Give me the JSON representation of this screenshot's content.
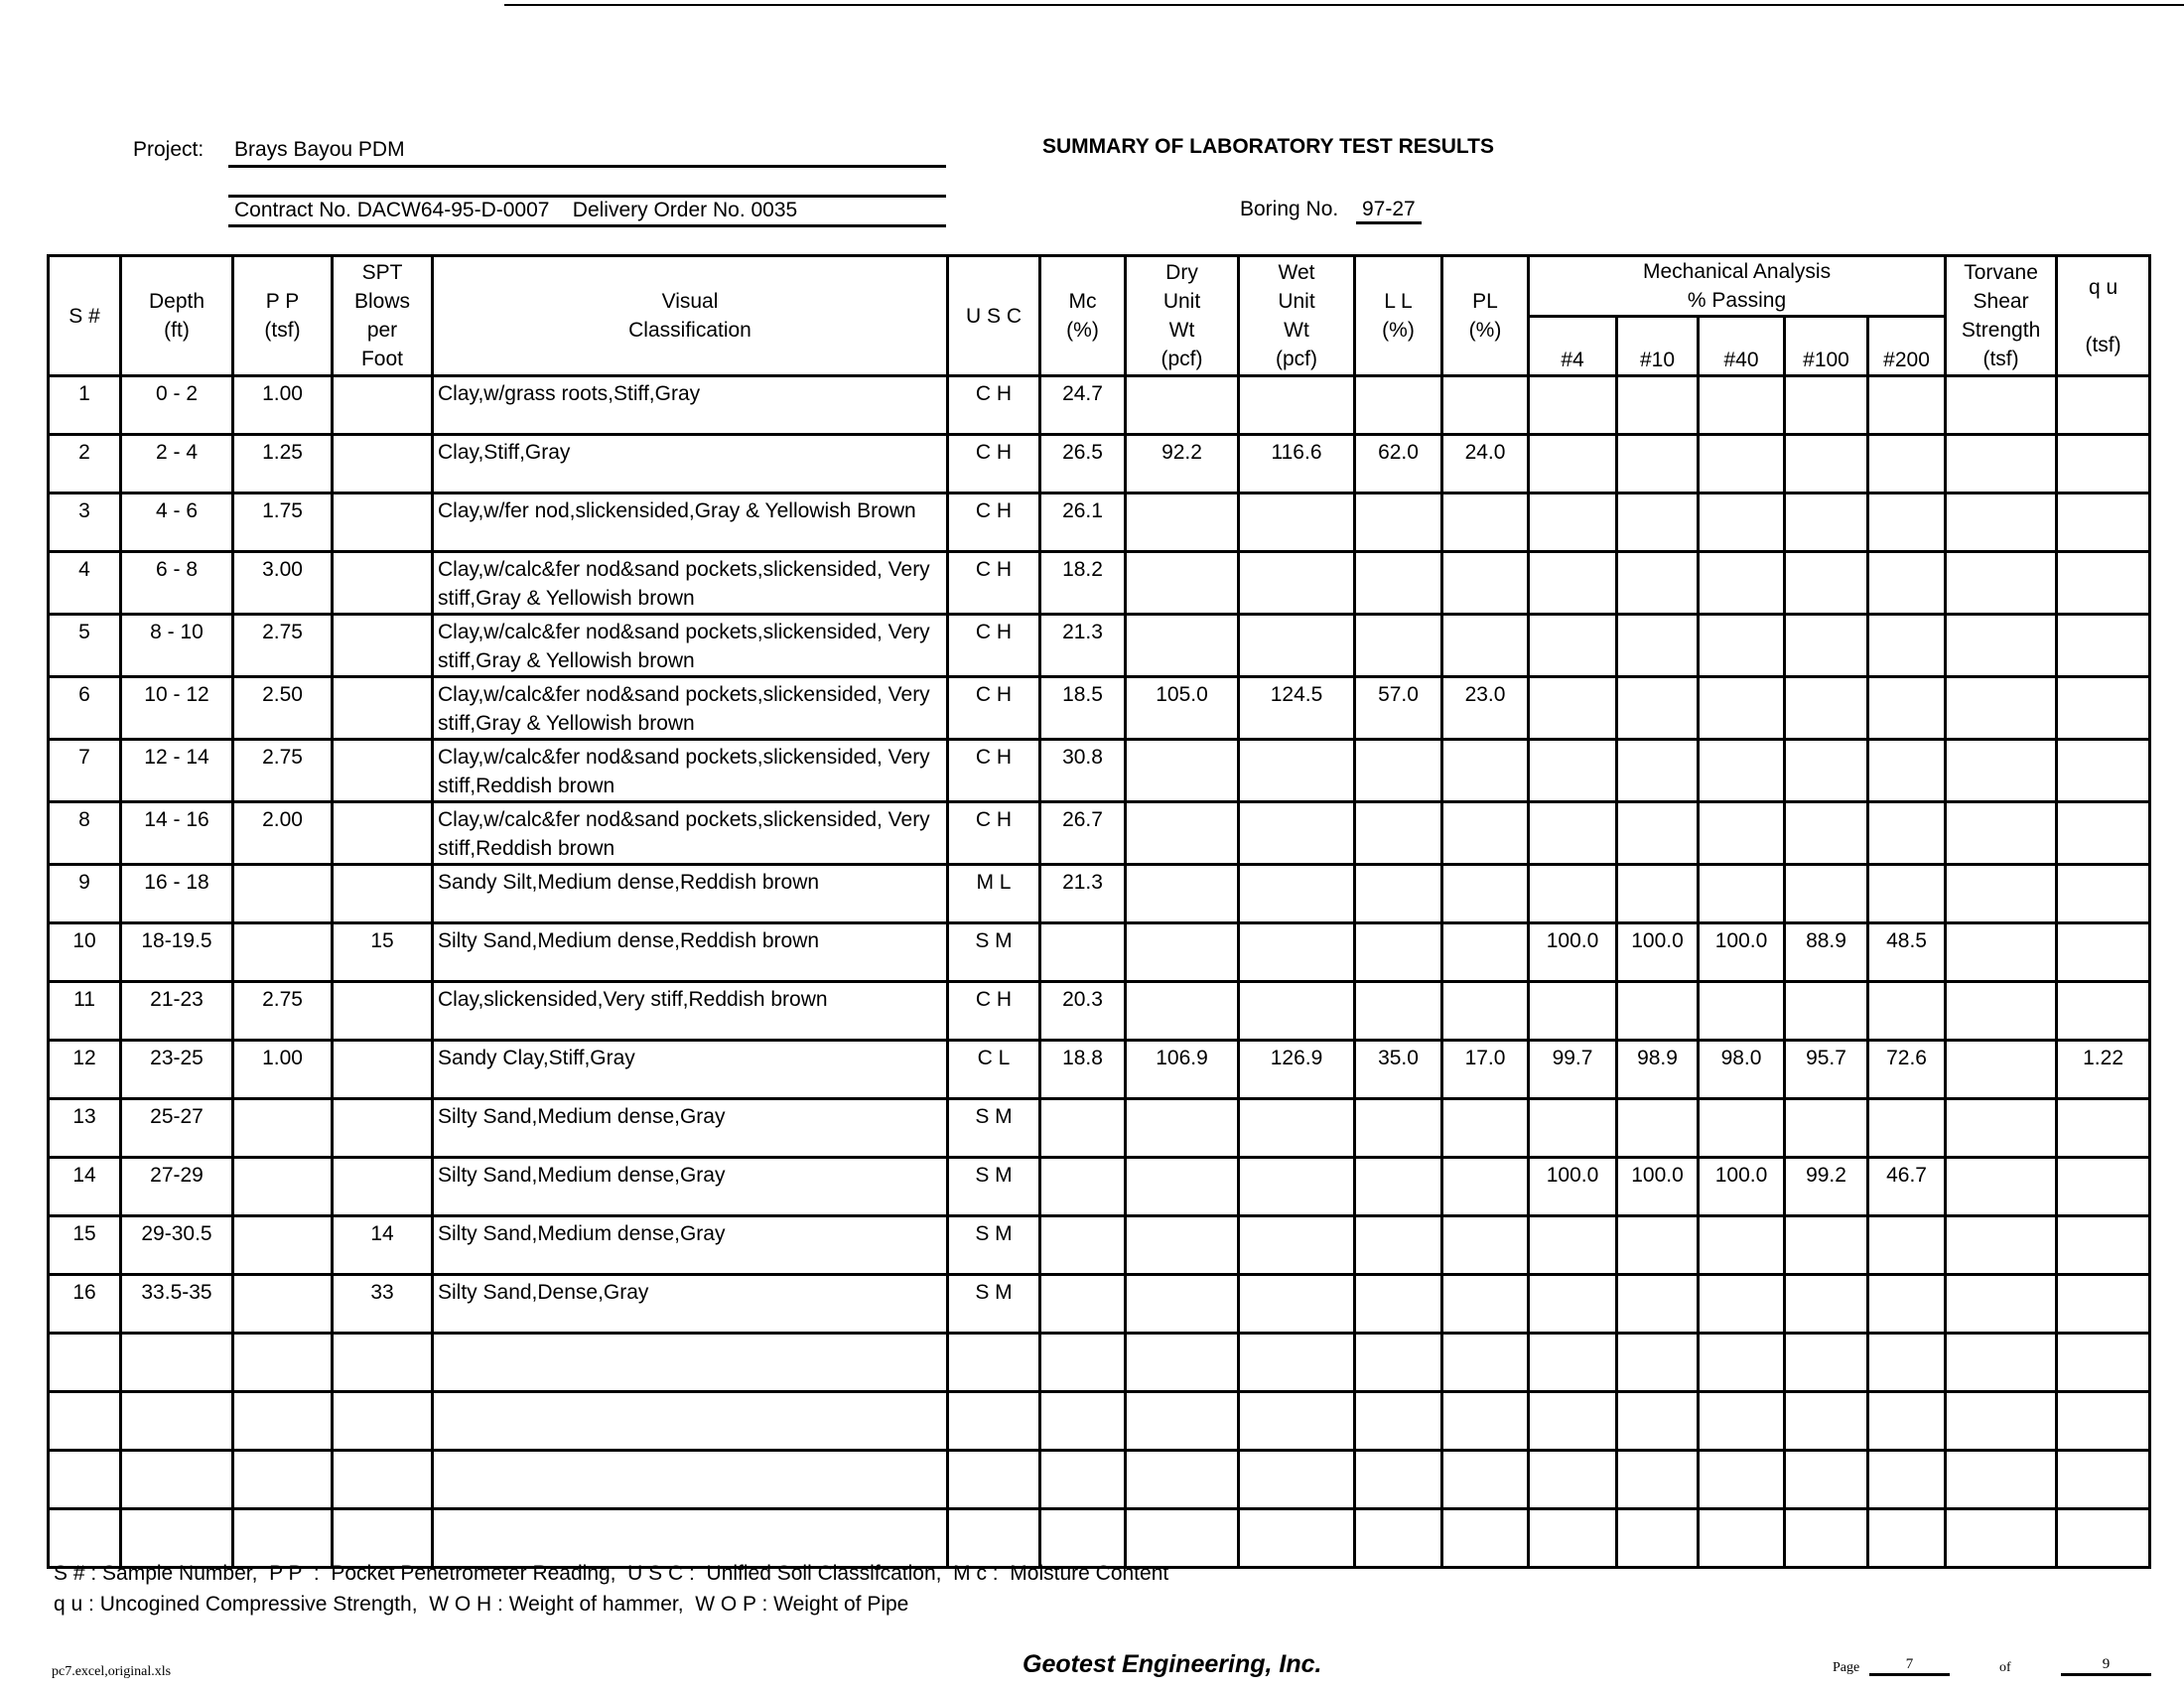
{
  "header": {
    "project_label": "Project:",
    "project_value": "Brays Bayou PDM",
    "contract": "Contract No. DACW64-95-D-0007    Delivery Order No. 0035",
    "title": "SUMMARY OF LABORATORY TEST RESULTS",
    "boring_label": "Boring No.",
    "boring_value": "97-27"
  },
  "columns": {
    "s": "S #",
    "depth": [
      "Depth",
      "(ft)"
    ],
    "pp": [
      "P P",
      "(tsf)"
    ],
    "spt": [
      "SPT",
      "Blows",
      "per",
      "Foot"
    ],
    "visual": [
      "Visual",
      "Classification"
    ],
    "usc": "U S C",
    "mc": [
      "Mc",
      "(%)"
    ],
    "dry": [
      "Dry",
      "Unit",
      "Wt",
      "(pcf)"
    ],
    "wet": [
      "Wet",
      "Unit",
      "Wt",
      "(pcf)"
    ],
    "ll": [
      "L L",
      "(%)"
    ],
    "pl": [
      "PL",
      "(%)"
    ],
    "mech": [
      "Mechanical Analysis",
      "% Passing"
    ],
    "sieves": [
      "#4",
      "#10",
      "#40",
      "#100",
      "#200"
    ],
    "torvane": [
      "Torvane",
      "Shear",
      "Strength",
      "(tsf)"
    ],
    "qu": [
      "q u",
      "(tsf)"
    ]
  },
  "rows": [
    [
      "1",
      "0 - 2",
      "1.00",
      "",
      "Clay,w/grass roots,Stiff,Gray",
      "C H",
      "24.7",
      "",
      "",
      "",
      "",
      "",
      "",
      "",
      "",
      "",
      "",
      ""
    ],
    [
      "2",
      "2 - 4",
      "1.25",
      "",
      "Clay,Stiff,Gray",
      "C H",
      "26.5",
      "92.2",
      "116.6",
      "62.0",
      "24.0",
      "",
      "",
      "",
      "",
      "",
      "",
      ""
    ],
    [
      "3",
      "4 - 6",
      "1.75",
      "",
      "Clay,w/fer nod,slickensided,Gray & Yellowish Brown",
      "C H",
      "26.1",
      "",
      "",
      "",
      "",
      "",
      "",
      "",
      "",
      "",
      "",
      ""
    ],
    [
      "4",
      "6 - 8",
      "3.00",
      "",
      "Clay,w/calc&fer nod&sand pockets,slickensided, Very stiff,Gray & Yellowish brown",
      "C H",
      "18.2",
      "",
      "",
      "",
      "",
      "",
      "",
      "",
      "",
      "",
      "",
      ""
    ],
    [
      "5",
      "8 - 10",
      "2.75",
      "",
      "Clay,w/calc&fer nod&sand pockets,slickensided, Very stiff,Gray & Yellowish brown",
      "C H",
      "21.3",
      "",
      "",
      "",
      "",
      "",
      "",
      "",
      "",
      "",
      "",
      ""
    ],
    [
      "6",
      "10 - 12",
      "2.50",
      "",
      "Clay,w/calc&fer nod&sand pockets,slickensided, Very stiff,Gray & Yellowish brown",
      "C H",
      "18.5",
      "105.0",
      "124.5",
      "57.0",
      "23.0",
      "",
      "",
      "",
      "",
      "",
      "",
      ""
    ],
    [
      "7",
      "12 - 14",
      "2.75",
      "",
      "Clay,w/calc&fer nod&sand pockets,slickensided, Very stiff,Reddish brown",
      "C H",
      "30.8",
      "",
      "",
      "",
      "",
      "",
      "",
      "",
      "",
      "",
      "",
      ""
    ],
    [
      "8",
      "14 - 16",
      "2.00",
      "",
      "Clay,w/calc&fer nod&sand pockets,slickensided, Very stiff,Reddish brown",
      "C H",
      "26.7",
      "",
      "",
      "",
      "",
      "",
      "",
      "",
      "",
      "",
      "",
      ""
    ],
    [
      "9",
      "16 - 18",
      "",
      "",
      "Sandy Silt,Medium dense,Reddish brown",
      "M L",
      "21.3",
      "",
      "",
      "",
      "",
      "",
      "",
      "",
      "",
      "",
      "",
      ""
    ],
    [
      "10",
      "18-19.5",
      "",
      "15",
      "Silty Sand,Medium dense,Reddish brown",
      "S M",
      "",
      "",
      "",
      "",
      "",
      "100.0",
      "100.0",
      "100.0",
      "88.9",
      "48.5",
      "",
      ""
    ],
    [
      "11",
      "21-23",
      "2.75",
      "",
      "Clay,slickensided,Very stiff,Reddish brown",
      "C H",
      "20.3",
      "",
      "",
      "",
      "",
      "",
      "",
      "",
      "",
      "",
      "",
      ""
    ],
    [
      "12",
      "23-25",
      "1.00",
      "",
      "Sandy Clay,Stiff,Gray",
      "C L",
      "18.8",
      "106.9",
      "126.9",
      "35.0",
      "17.0",
      "99.7",
      "98.9",
      "98.0",
      "95.7",
      "72.6",
      "",
      "1.22"
    ],
    [
      "13",
      "25-27",
      "",
      "",
      "Silty Sand,Medium dense,Gray",
      "S M",
      "",
      "",
      "",
      "",
      "",
      "",
      "",
      "",
      "",
      "",
      "",
      ""
    ],
    [
      "14",
      "27-29",
      "",
      "",
      "Silty Sand,Medium dense,Gray",
      "S M",
      "",
      "",
      "",
      "",
      "",
      "100.0",
      "100.0",
      "100.0",
      "99.2",
      "46.7",
      "",
      ""
    ],
    [
      "15",
      "29-30.5",
      "",
      "14",
      "Silty Sand,Medium dense,Gray",
      "S M",
      "",
      "",
      "",
      "",
      "",
      "",
      "",
      "",
      "",
      "",
      "",
      ""
    ],
    [
      "16",
      "33.5-35",
      "",
      "33",
      "Silty Sand,Dense,Gray",
      "S M",
      "",
      "",
      "",
      "",
      "",
      "",
      "",
      "",
      "",
      "",
      "",
      ""
    ],
    [
      "",
      "",
      "",
      "",
      "",
      "",
      "",
      "",
      "",
      "",
      "",
      "",
      "",
      "",
      "",
      "",
      "",
      ""
    ],
    [
      "",
      "",
      "",
      "",
      "",
      "",
      "",
      "",
      "",
      "",
      "",
      "",
      "",
      "",
      "",
      "",
      "",
      ""
    ],
    [
      "",
      "",
      "",
      "",
      "",
      "",
      "",
      "",
      "",
      "",
      "",
      "",
      "",
      "",
      "",
      "",
      "",
      ""
    ],
    [
      "",
      "",
      "",
      "",
      "",
      "",
      "",
      "",
      "",
      "",
      "",
      "",
      "",
      "",
      "",
      "",
      "",
      ""
    ]
  ],
  "footer": {
    "legend1": "S # : Sample Number,  P P  :  Pocket Penetrometer Reading,  U S C :  Unified Soil Classifcation,  M c :  Moisture Content",
    "legend2": "q u : Uncogined Compressive Strength,  W O H : Weight of hammer,  W O P : Weight of Pipe",
    "file": "pc7.excel,original.xls",
    "company": "Geotest Engineering, Inc.",
    "page_label": "Page",
    "page": "7",
    "of_label": "of",
    "total": "9"
  }
}
